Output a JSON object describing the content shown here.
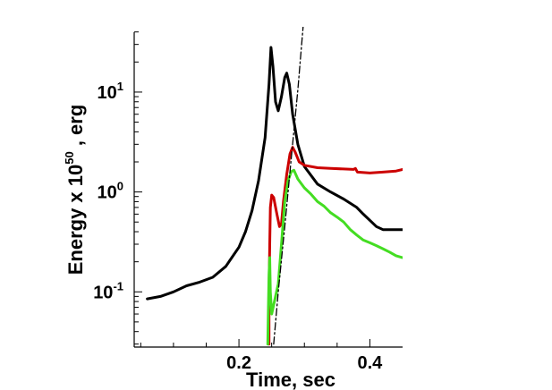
{
  "chart_data": {
    "type": "line",
    "xlabel": "Time, sec",
    "ylabel": {
      "prefix": "Energy x 10",
      "sup": "50",
      "suffix": " , erg"
    },
    "xlim": [
      0.04,
      0.45
    ],
    "ylim": [
      0.028,
      45
    ],
    "yscale": "log",
    "grid": false,
    "x_ticks": [
      {
        "value": 0.2,
        "label": "0.2"
      },
      {
        "value": 0.4,
        "label": "0.4"
      }
    ],
    "y_ticks": [
      {
        "value": 0.1,
        "base": "10",
        "exp": "-1"
      },
      {
        "value": 1,
        "base": "10",
        "exp": "0"
      },
      {
        "value": 10,
        "base": "10",
        "exp": "1"
      }
    ],
    "x_minor_ticks": [
      0.05,
      0.1,
      0.15,
      0.25,
      0.3,
      0.35
    ],
    "series": [
      {
        "color": "#000000",
        "style": "solid",
        "points": [
          [
            0.06,
            0.085
          ],
          [
            0.08,
            0.09
          ],
          [
            0.1,
            0.1
          ],
          [
            0.12,
            0.115
          ],
          [
            0.14,
            0.125
          ],
          [
            0.16,
            0.14
          ],
          [
            0.18,
            0.18
          ],
          [
            0.2,
            0.28
          ],
          [
            0.21,
            0.4
          ],
          [
            0.22,
            0.65
          ],
          [
            0.23,
            1.3
          ],
          [
            0.24,
            3.5
          ],
          [
            0.246,
            12
          ],
          [
            0.249,
            28
          ],
          [
            0.252,
            18
          ],
          [
            0.256,
            8
          ],
          [
            0.26,
            6.5
          ],
          [
            0.265,
            9
          ],
          [
            0.27,
            14
          ],
          [
            0.273,
            15.5
          ],
          [
            0.277,
            12
          ],
          [
            0.282,
            6
          ],
          [
            0.29,
            3
          ],
          [
            0.3,
            1.8
          ],
          [
            0.32,
            1.2
          ],
          [
            0.34,
            1.0
          ],
          [
            0.36,
            0.85
          ],
          [
            0.38,
            0.7
          ],
          [
            0.39,
            0.6
          ],
          [
            0.4,
            0.52
          ],
          [
            0.41,
            0.45
          ],
          [
            0.42,
            0.42
          ],
          [
            0.45,
            0.42
          ]
        ]
      },
      {
        "color": "#cc0000",
        "style": "solid",
        "points": [
          [
            0.246,
            0.03
          ],
          [
            0.246,
            0.1
          ],
          [
            0.247,
            0.3
          ],
          [
            0.248,
            0.7
          ],
          [
            0.25,
            0.93
          ],
          [
            0.253,
            0.88
          ],
          [
            0.258,
            0.6
          ],
          [
            0.262,
            0.45
          ],
          [
            0.265,
            0.48
          ],
          [
            0.268,
            0.8
          ],
          [
            0.273,
            1.5
          ],
          [
            0.278,
            2.4
          ],
          [
            0.282,
            2.8
          ],
          [
            0.286,
            2.5
          ],
          [
            0.292,
            2.0
          ],
          [
            0.3,
            1.85
          ],
          [
            0.32,
            1.75
          ],
          [
            0.34,
            1.72
          ],
          [
            0.36,
            1.7
          ],
          [
            0.375,
            1.68
          ],
          [
            0.378,
            1.72
          ],
          [
            0.381,
            1.58
          ],
          [
            0.4,
            1.55
          ],
          [
            0.42,
            1.58
          ],
          [
            0.44,
            1.62
          ],
          [
            0.45,
            1.68
          ]
        ]
      },
      {
        "color": "#44dd22",
        "style": "solid",
        "points": [
          [
            0.244,
            0.03
          ],
          [
            0.245,
            0.07
          ],
          [
            0.246,
            0.15
          ],
          [
            0.247,
            0.22
          ],
          [
            0.248,
            0.1
          ],
          [
            0.25,
            0.06
          ],
          [
            0.26,
            0.12
          ],
          [
            0.265,
            0.3
          ],
          [
            0.27,
            0.8
          ],
          [
            0.275,
            1.3
          ],
          [
            0.28,
            1.6
          ],
          [
            0.284,
            1.65
          ],
          [
            0.29,
            1.35
          ],
          [
            0.3,
            1.1
          ],
          [
            0.31,
            0.95
          ],
          [
            0.32,
            0.8
          ],
          [
            0.33,
            0.72
          ],
          [
            0.34,
            0.62
          ],
          [
            0.35,
            0.56
          ],
          [
            0.36,
            0.5
          ],
          [
            0.37,
            0.42
          ],
          [
            0.38,
            0.37
          ],
          [
            0.39,
            0.33
          ],
          [
            0.4,
            0.31
          ],
          [
            0.41,
            0.29
          ],
          [
            0.42,
            0.27
          ],
          [
            0.43,
            0.25
          ],
          [
            0.44,
            0.23
          ],
          [
            0.45,
            0.22
          ]
        ]
      },
      {
        "color": "#000000",
        "style": "dashdot",
        "points": [
          [
            0.253,
            0.03
          ],
          [
            0.26,
            0.1
          ],
          [
            0.27,
            0.45
          ],
          [
            0.28,
            2.2
          ],
          [
            0.29,
            10.5
          ],
          [
            0.298,
            45
          ]
        ]
      }
    ]
  }
}
